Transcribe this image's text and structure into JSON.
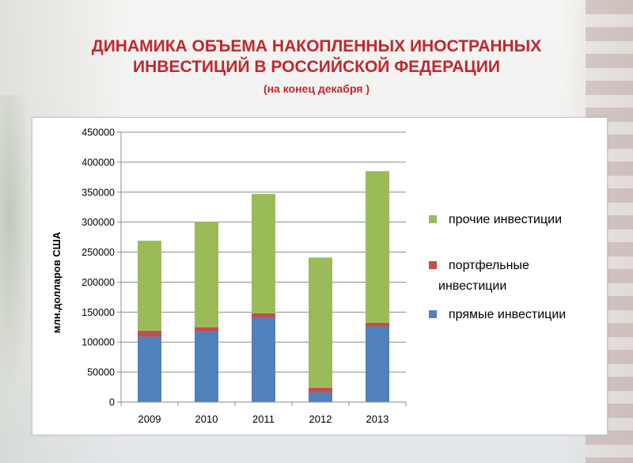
{
  "title_line1": "ДИНАМИКА ОБЪЕМА НАКОПЛЕННЫХ ИНОСТРАННЫХ",
  "title_line2": "ИНВЕСТИЦИЙ В РОССИЙСКОЙ ФЕДЕРАЦИИ",
  "subtitle": "(на конец декабря )",
  "chart_data": {
    "type": "bar",
    "stacked": true,
    "categories": [
      "2009",
      "2010",
      "2011",
      "2012",
      "2013"
    ],
    "series": [
      {
        "name": "прямые инвестиции",
        "color": "#4f81bd",
        "values": [
          109000,
          117000,
          140000,
          16000,
          126000
        ]
      },
      {
        "name": "портфельные инвестиции",
        "color": "#c0504d",
        "values": [
          10000,
          8000,
          8000,
          8000,
          6000
        ]
      },
      {
        "name": "прочие инвестиции",
        "color": "#9bbb59",
        "values": [
          150000,
          175000,
          199000,
          217000,
          253000
        ]
      }
    ],
    "legend_order": [
      "прочие инвестиции",
      "портфельные инвестиции",
      "прямые инвестиции"
    ],
    "legend_lines": {
      "прочие инвестиции": [
        "прочие инвестиции"
      ],
      "портфельные инвестиции": [
        "портфельные",
        "инвестиции"
      ],
      "прямые инвестиции": [
        "прямые инвестиции"
      ]
    },
    "ylabel": "млн.долларов США",
    "xlabel": "",
    "ylim": [
      0,
      450000
    ],
    "yticks": [
      "0",
      "50000",
      "100000",
      "150000",
      "200000",
      "250000",
      "300000",
      "350000",
      "400000",
      "450000"
    ],
    "grid": true,
    "legend_position": "right"
  }
}
